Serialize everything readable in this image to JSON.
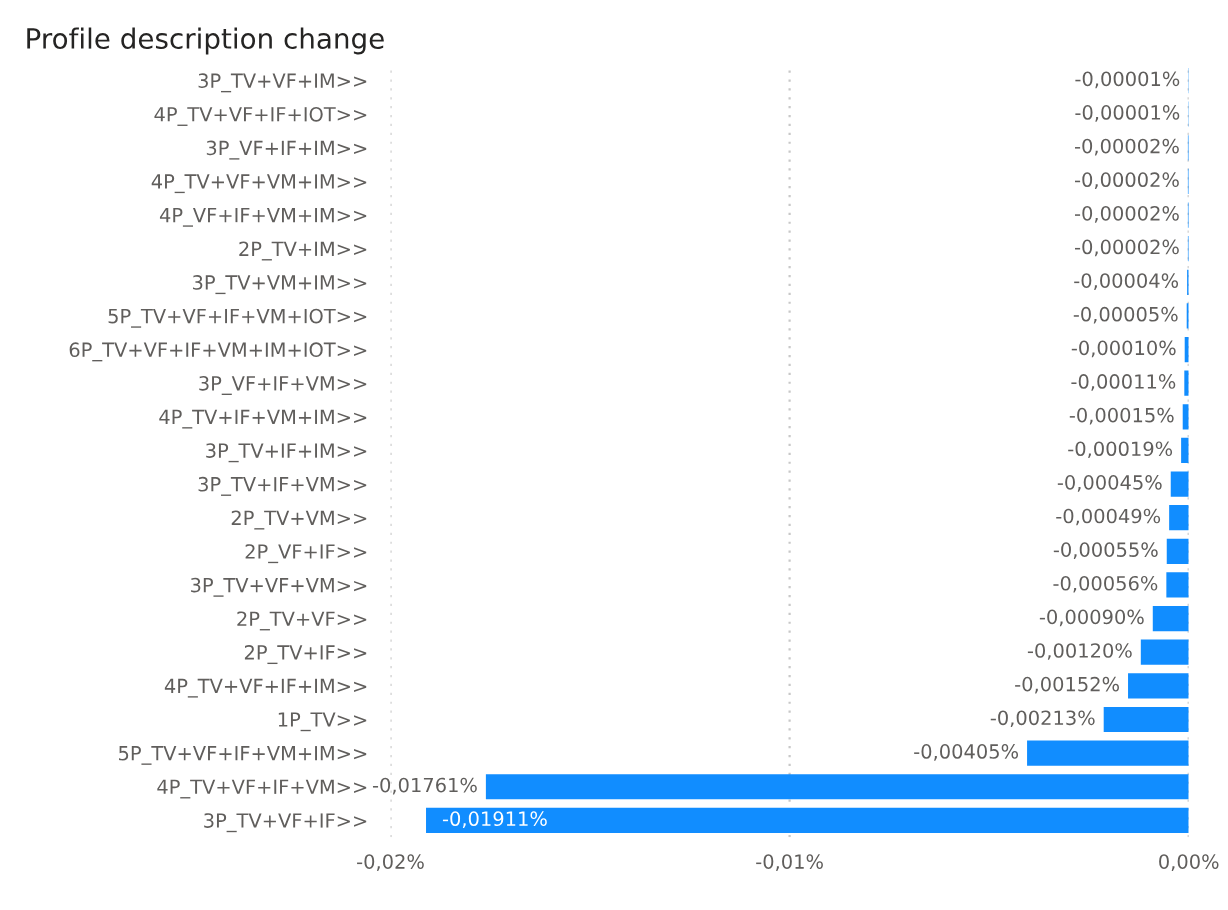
{
  "chart_data": {
    "type": "bar",
    "orientation": "horizontal",
    "title": "Profile description change",
    "categories": [
      "3P_TV+VF+IM>>",
      "4P_TV+VF+IF+IOT>>",
      "3P_VF+IF+IM>>",
      "4P_TV+VF+VM+IM>>",
      "4P_VF+IF+VM+IM>>",
      "2P_TV+IM>>",
      "3P_TV+VM+IM>>",
      "5P_TV+VF+IF+VM+IOT>>",
      "6P_TV+VF+IF+VM+IM+IOT>>",
      "3P_VF+IF+VM>>",
      "4P_TV+IF+VM+IM>>",
      "3P_TV+IF+IM>>",
      "3P_TV+IF+VM>>",
      "2P_TV+VM>>",
      "2P_VF+IF>>",
      "3P_TV+VF+VM>>",
      "2P_TV+VF>>",
      "2P_TV+IF>>",
      "4P_TV+VF+IF+IM>>",
      "1P_TV>>",
      "5P_TV+VF+IF+VM+IM>>",
      "4P_TV+VF+IF+VM>>",
      "3P_TV+VF+IF>>"
    ],
    "values": [
      -1e-05,
      -1e-05,
      -2e-05,
      -2e-05,
      -2e-05,
      -2e-05,
      -4e-05,
      -5e-05,
      -0.0001,
      -0.00011,
      -0.00015,
      -0.00019,
      -0.00045,
      -0.00049,
      -0.00055,
      -0.00056,
      -0.0009,
      -0.0012,
      -0.00152,
      -0.00213,
      -0.00405,
      -0.01761,
      -0.01911
    ],
    "value_labels": [
      "-0,00001%",
      "-0,00001%",
      "-0,00002%",
      "-0,00002%",
      "-0,00002%",
      "-0,00002%",
      "-0,00004%",
      "-0,00005%",
      "-0,00010%",
      "-0,00011%",
      "-0,00015%",
      "-0,00019%",
      "-0,00045%",
      "-0,00049%",
      "-0,00055%",
      "-0,00056%",
      "-0,00090%",
      "-0,00120%",
      "-0,00152%",
      "-0,00213%",
      "-0,00405%",
      "-0,01761%",
      "-0,01911%"
    ],
    "color": "#118dff",
    "xlim": [
      -0.02,
      0
    ],
    "xticks": [
      {
        "value": -0.02,
        "label": "-0,02%"
      },
      {
        "value": -0.01,
        "label": "-0,01%"
      },
      {
        "value": 0,
        "label": "0,00%"
      }
    ],
    "grid": "x"
  }
}
